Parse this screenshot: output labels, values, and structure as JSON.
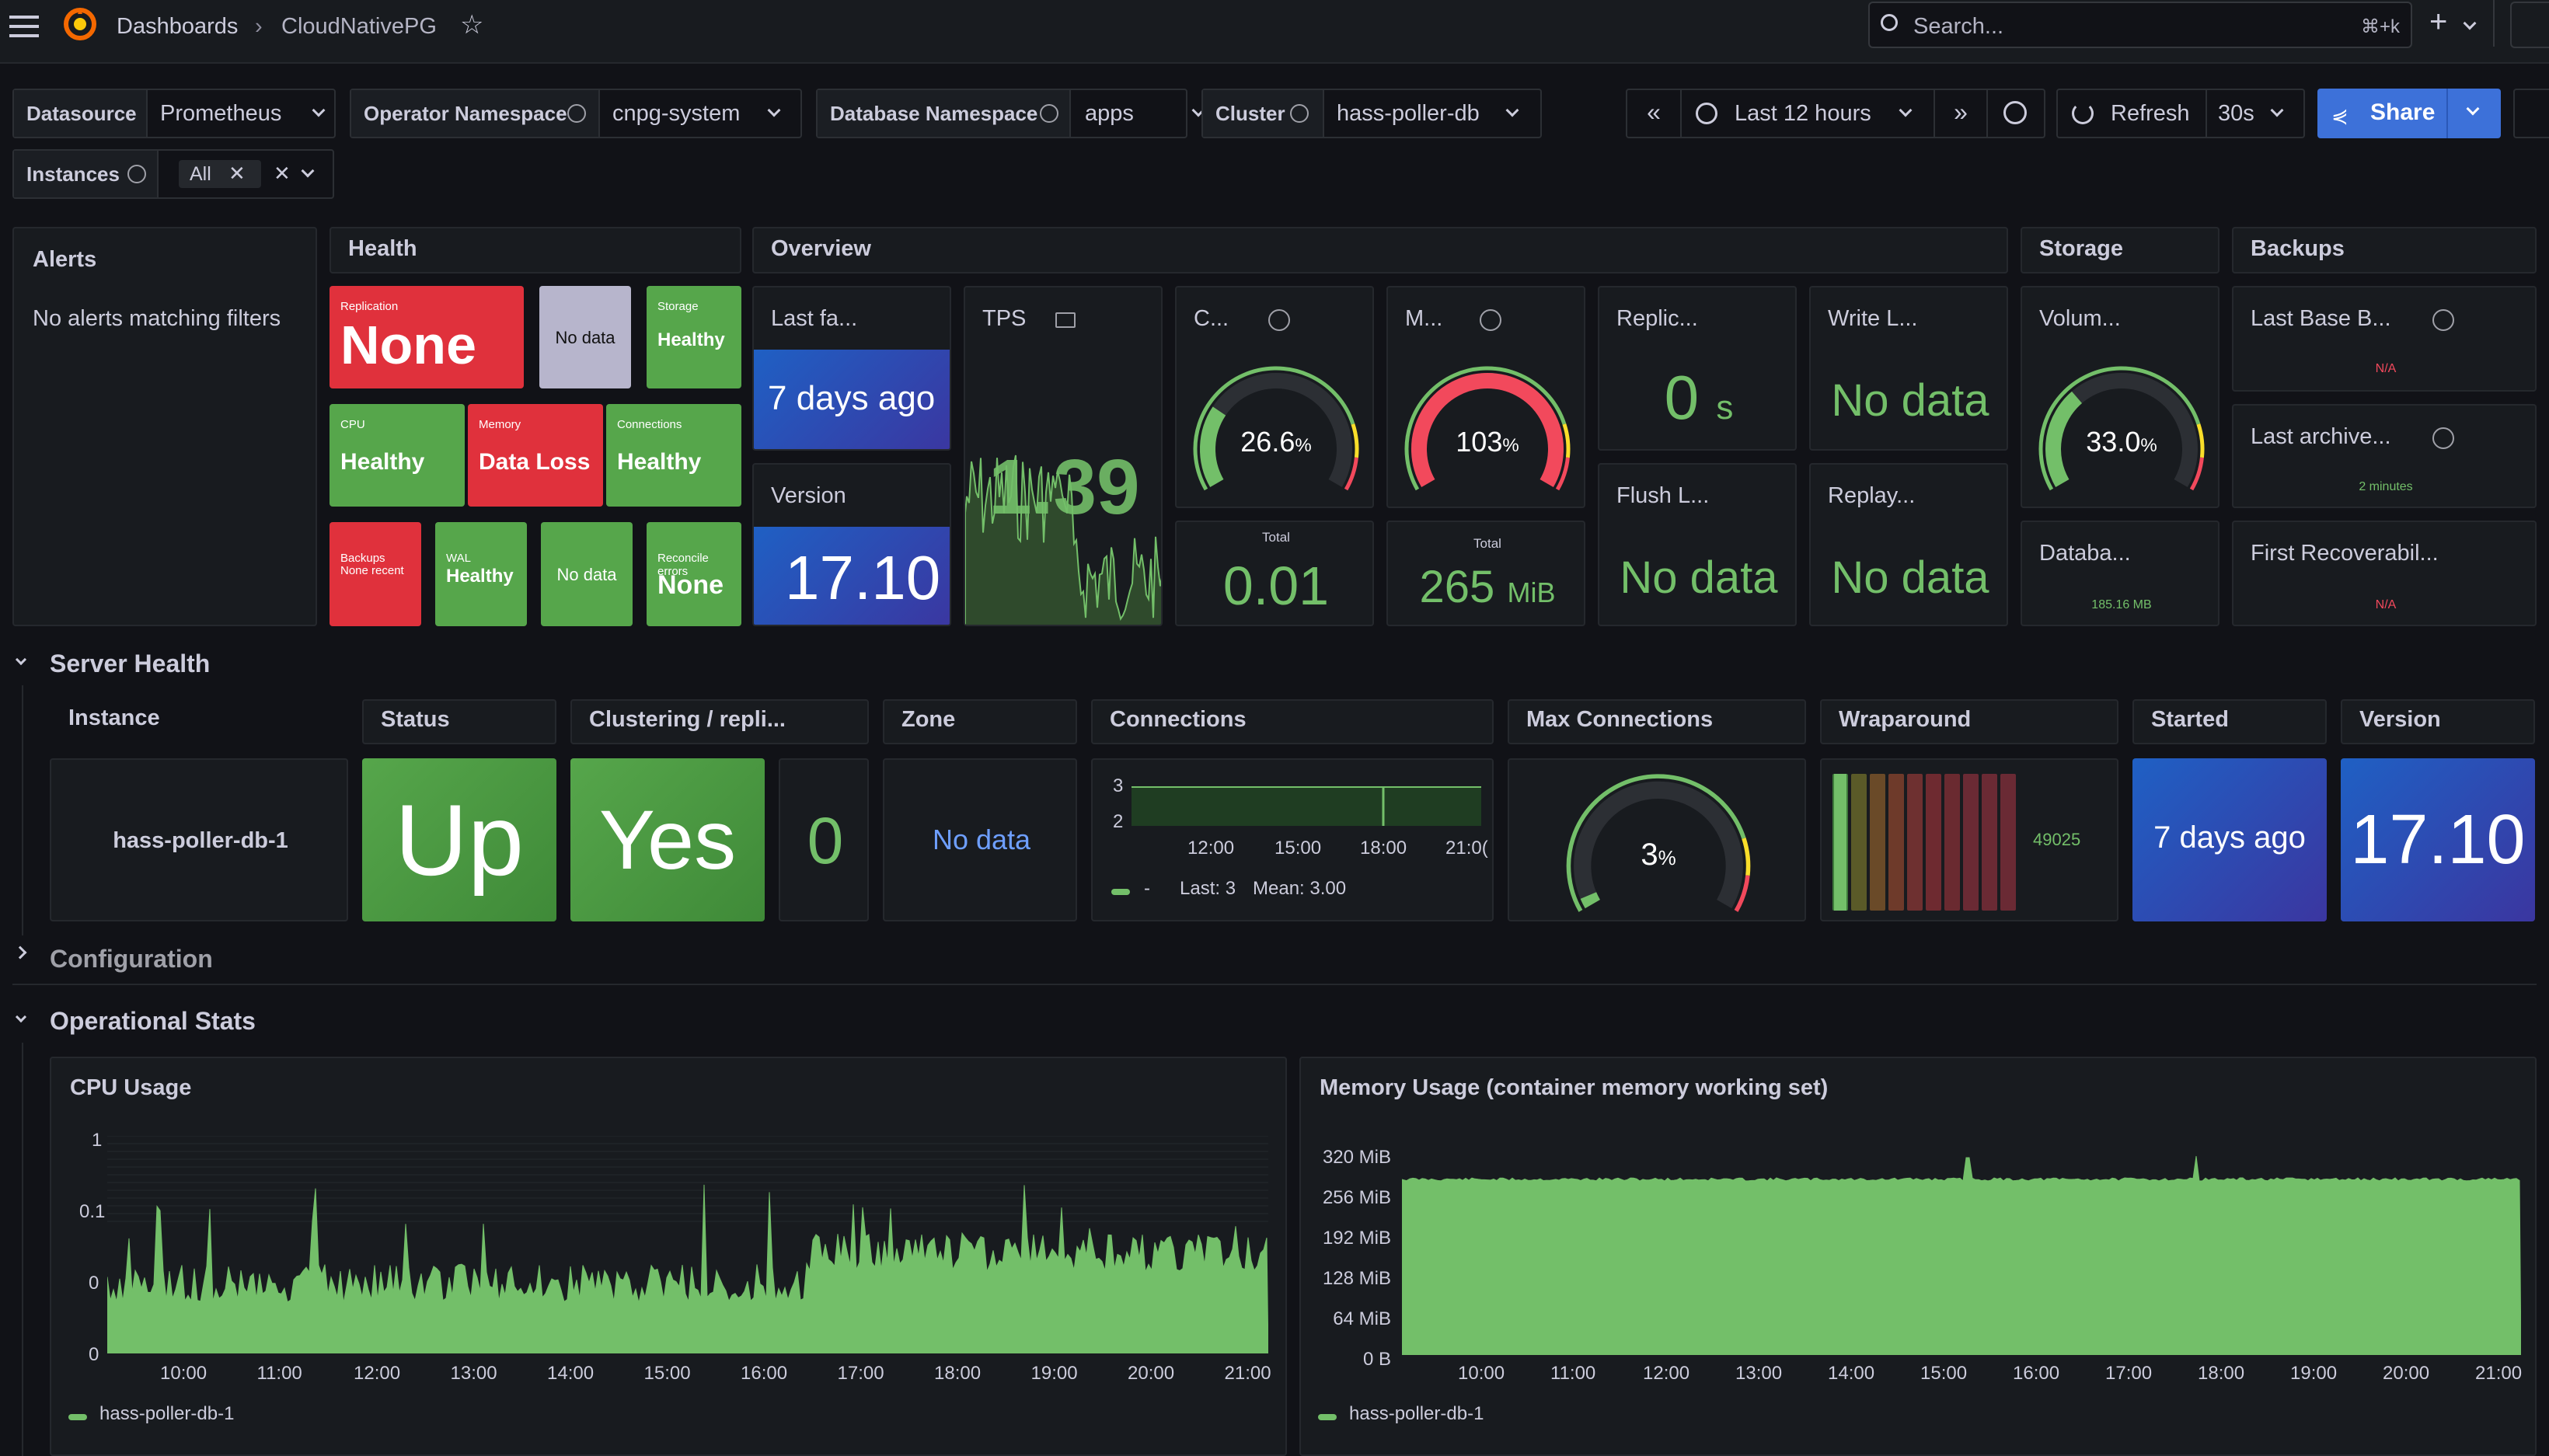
{
  "topbar": {
    "breadcrumb_root": "Dashboards",
    "breadcrumb_sep": "›",
    "breadcrumb_current": "CloudNativePG",
    "search_placeholder": "Search...",
    "search_shortcut": "⌘+k",
    "add_label": "+"
  },
  "variables": {
    "datasource_label": "Datasource",
    "datasource_value": "Prometheus",
    "operator_ns_label": "Operator Namespace",
    "operator_ns_value": "cnpg-system",
    "database_ns_label": "Database Namespace",
    "database_ns_value": "apps",
    "cluster_label": "Cluster",
    "cluster_value": "hass-poller-db",
    "instances_label": "Instances",
    "instances_value": "All",
    "time_range": "Last 12 hours",
    "refresh_label": "Refresh",
    "refresh_interval": "30s",
    "share_label": "Share"
  },
  "alerts": {
    "title": "Alerts",
    "empty": "No alerts matching filters"
  },
  "health": {
    "title": "Health",
    "tiles": [
      {
        "label": "Replication",
        "value": "None",
        "color": "#e0313c"
      },
      {
        "label": "",
        "value": "No data",
        "color": "#b7b5cc"
      },
      {
        "label": "Storage",
        "value": "Healthy",
        "color": "#56a64b"
      },
      {
        "label": "CPU",
        "value": "Healthy",
        "color": "#56a64b"
      },
      {
        "label": "Memory",
        "value": "Data Loss",
        "color": "#e0313c"
      },
      {
        "label": "Connections",
        "value": "Healthy",
        "color": "#56a64b"
      },
      {
        "label": "Backups",
        "value": "None recent",
        "color": "#e0313c"
      },
      {
        "label": "WAL",
        "value": "Healthy",
        "color": "#56a64b"
      },
      {
        "label": "",
        "value": "No data",
        "color": "#56a64b"
      },
      {
        "label": "Reconcile errors",
        "value": "None",
        "color": "#56a64b"
      }
    ]
  },
  "overview": {
    "title": "Overview",
    "last_failover_title": "Last fa...",
    "last_failover_value": "7 days ago",
    "version_title": "Version",
    "version_value": "17.10",
    "tps_title": "TPS",
    "tps_value": "1.39",
    "cpu_title": "C...",
    "cpu_value": "26.6",
    "cpu_unit": "%",
    "cpu_gauge": 0.266,
    "cpu_total_label": "Total",
    "cpu_total_value": "0.01",
    "mem_title": "M...",
    "mem_value": "103",
    "mem_unit": "%",
    "mem_gauge": 1.0,
    "mem_total_label": "Total",
    "mem_total_value": "265",
    "mem_total_unit": "MiB",
    "replic_title": "Replic...",
    "replic_value": "0",
    "replic_unit": "s",
    "write_title": "Write L...",
    "write_value": "No data",
    "flush_title": "Flush L...",
    "flush_value": "No data",
    "replay_title": "Replay...",
    "replay_value": "No data"
  },
  "storage": {
    "title": "Storage",
    "volume_title": "Volum...",
    "volume_value": "33.0",
    "volume_unit": "%",
    "volume_gauge": 0.33,
    "db_title": "Databa...",
    "db_value": "185.16 MB"
  },
  "backups": {
    "title": "Backups",
    "last_base_title": "Last Base B...",
    "last_base_value": "N/A",
    "last_archive_title": "Last archive...",
    "last_archive_value": "2 minutes",
    "first_recov_title": "First Recoverabil...",
    "first_recov_value": "N/A"
  },
  "server_health": {
    "row_title": "Server Health",
    "headers": {
      "instance": "Instance",
      "status": "Status",
      "clustering": "Clustering / repli...",
      "zone": "Zone",
      "connections": "Connections",
      "max_connections": "Max Connections",
      "wraparound": "Wraparound",
      "started": "Started",
      "version": "Version"
    },
    "instance": "hass-poller-db-1",
    "status": "Up",
    "clustering": "Yes",
    "replicas": "0",
    "zone": "No data",
    "conn_axis_y": [
      "3",
      "2"
    ],
    "conn_axis_x": [
      "12:00",
      "15:00",
      "18:00",
      "21:0("
    ],
    "conn_legend": "-",
    "conn_last": "Last: 3",
    "conn_mean": "Mean: 3.00",
    "max_conn_value": "3",
    "max_conn_unit": "%",
    "max_conn_gauge": 0.03,
    "wraparound_value": "49025",
    "started": "7 days ago",
    "version": "17.10"
  },
  "configuration": {
    "row_title": "Configuration"
  },
  "operational": {
    "row_title": "Operational Stats",
    "cpu_title": "CPU Usage",
    "cpu_y": [
      "1",
      "0.1",
      "0",
      "0"
    ],
    "mem_title": "Memory Usage (container memory working set)",
    "mem_y": [
      "320 MiB",
      "256 MiB",
      "192 MiB",
      "128 MiB",
      "64 MiB",
      "0 B"
    ],
    "x_ticks": [
      "10:00",
      "11:00",
      "12:00",
      "13:00",
      "14:00",
      "15:00",
      "16:00",
      "17:00",
      "18:00",
      "19:00",
      "20:00",
      "21:00"
    ],
    "legend": "hass-poller-db-1",
    "series_color": "#73bf69"
  }
}
